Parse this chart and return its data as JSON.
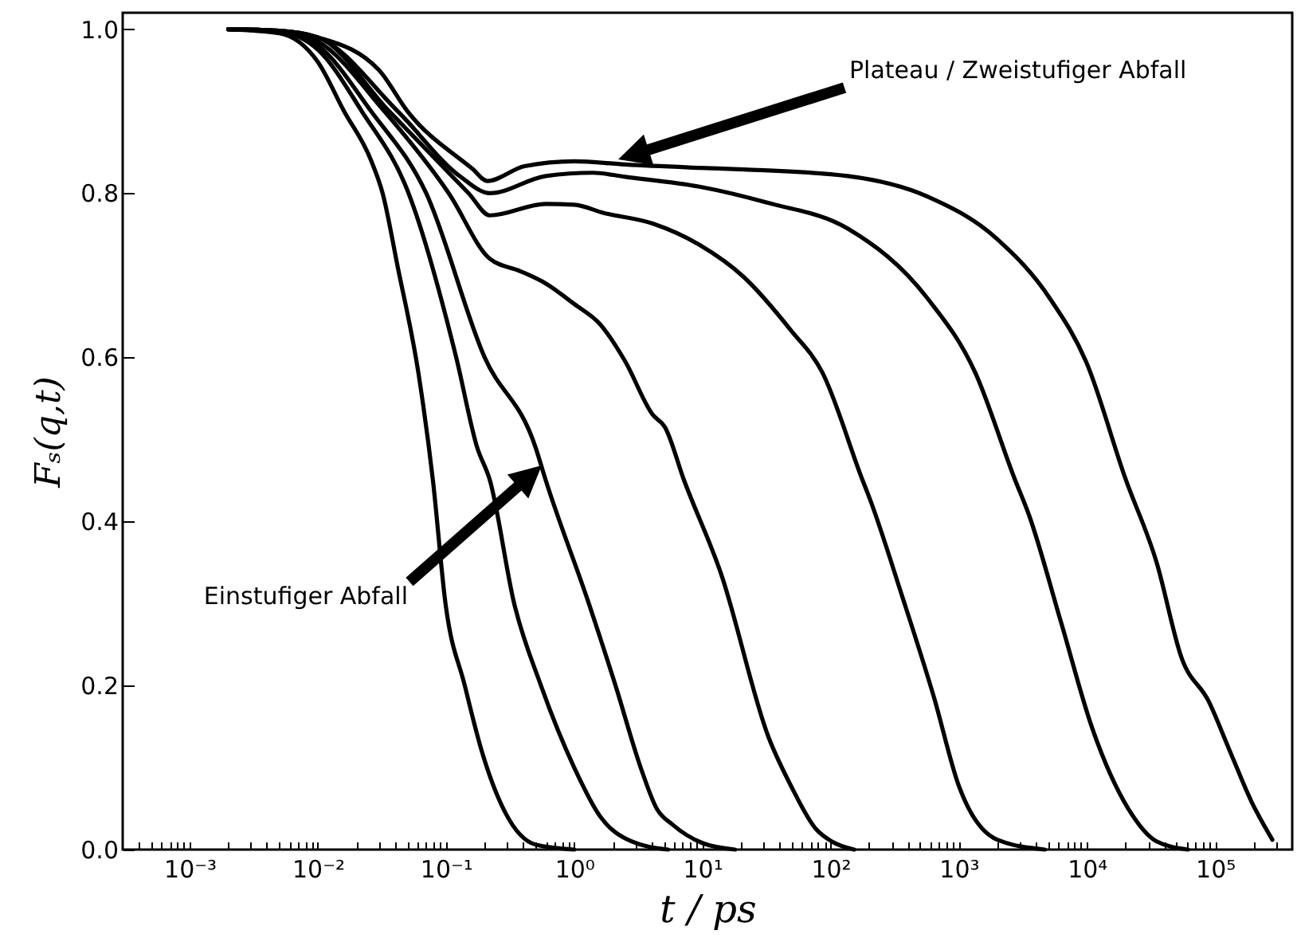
{
  "chart_data": {
    "type": "line",
    "xlabel": "t / ps",
    "ylabel": "Fₛ(q,t)",
    "log": "x",
    "grid": false,
    "xlim": [
      0.0003,
      400000
    ],
    "ylim": [
      0,
      1.02
    ],
    "xticks": [
      {
        "value": 0.0004,
        "label": null
      },
      {
        "value": 0.0005,
        "label": null
      },
      {
        "value": 0.0006,
        "label": null
      },
      {
        "value": 0.0007,
        "label": null
      },
      {
        "value": 0.0008,
        "label": null
      },
      {
        "value": 0.0009,
        "label": null
      },
      {
        "value": 0.001,
        "label": "10⁻³"
      },
      {
        "value": 0.002,
        "label": null
      },
      {
        "value": 0.003,
        "label": null
      },
      {
        "value": 0.004,
        "label": null
      },
      {
        "value": 0.005,
        "label": null
      },
      {
        "value": 0.006,
        "label": null
      },
      {
        "value": 0.007,
        "label": null
      },
      {
        "value": 0.008,
        "label": null
      },
      {
        "value": 0.009,
        "label": null
      },
      {
        "value": 0.01,
        "label": "10⁻²"
      },
      {
        "value": 0.02,
        "label": null
      },
      {
        "value": 0.03,
        "label": null
      },
      {
        "value": 0.04,
        "label": null
      },
      {
        "value": 0.05,
        "label": null
      },
      {
        "value": 0.06,
        "label": null
      },
      {
        "value": 0.07,
        "label": null
      },
      {
        "value": 0.08,
        "label": null
      },
      {
        "value": 0.09,
        "label": null
      },
      {
        "value": 0.1,
        "label": "10⁻¹"
      },
      {
        "value": 0.2,
        "label": null
      },
      {
        "value": 0.3,
        "label": null
      },
      {
        "value": 0.4,
        "label": null
      },
      {
        "value": 0.5,
        "label": null
      },
      {
        "value": 0.6,
        "label": null
      },
      {
        "value": 0.7,
        "label": null
      },
      {
        "value": 0.8,
        "label": null
      },
      {
        "value": 0.9,
        "label": null
      },
      {
        "value": 1,
        "label": "10⁰"
      },
      {
        "value": 2,
        "label": null
      },
      {
        "value": 3,
        "label": null
      },
      {
        "value": 4,
        "label": null
      },
      {
        "value": 5,
        "label": null
      },
      {
        "value": 6,
        "label": null
      },
      {
        "value": 7,
        "label": null
      },
      {
        "value": 8,
        "label": null
      },
      {
        "value": 9,
        "label": null
      },
      {
        "value": 10,
        "label": "10¹"
      },
      {
        "value": 20,
        "label": null
      },
      {
        "value": 30,
        "label": null
      },
      {
        "value": 40,
        "label": null
      },
      {
        "value": 50,
        "label": null
      },
      {
        "value": 60,
        "label": null
      },
      {
        "value": 70,
        "label": null
      },
      {
        "value": 80,
        "label": null
      },
      {
        "value": 90,
        "label": null
      },
      {
        "value": 100,
        "label": "10²"
      },
      {
        "value": 200,
        "label": null
      },
      {
        "value": 300,
        "label": null
      },
      {
        "value": 400,
        "label": null
      },
      {
        "value": 500,
        "label": null
      },
      {
        "value": 600,
        "label": null
      },
      {
        "value": 700,
        "label": null
      },
      {
        "value": 800,
        "label": null
      },
      {
        "value": 900,
        "label": null
      },
      {
        "value": 1000,
        "label": "10³"
      },
      {
        "value": 2000,
        "label": null
      },
      {
        "value": 3000,
        "label": null
      },
      {
        "value": 4000,
        "label": null
      },
      {
        "value": 5000,
        "label": null
      },
      {
        "value": 6000,
        "label": null
      },
      {
        "value": 7000,
        "label": null
      },
      {
        "value": 8000,
        "label": null
      },
      {
        "value": 9000,
        "label": null
      },
      {
        "value": 10000,
        "label": "10⁴"
      },
      {
        "value": 20000,
        "label": null
      },
      {
        "value": 30000,
        "label": null
      },
      {
        "value": 40000,
        "label": null
      },
      {
        "value": 50000,
        "label": null
      },
      {
        "value": 60000,
        "label": null
      },
      {
        "value": 70000,
        "label": null
      },
      {
        "value": 80000,
        "label": null
      },
      {
        "value": 90000,
        "label": null
      },
      {
        "value": 100000,
        "label": "10⁵"
      },
      {
        "value": 200000,
        "label": null
      },
      {
        "value": 300000,
        "label": null
      }
    ],
    "yticks": [
      {
        "value": 0,
        "label": "0.0"
      },
      0.2,
      0.4,
      0.6,
      0.8,
      {
        "value": 1,
        "label": "1.0"
      }
    ],
    "series": [
      {
        "color": "#000000",
        "x": [
          0.002,
          0.005,
          0.01,
          0.016,
          0.026,
          0.032,
          0.042,
          0.061,
          0.079,
          0.099,
          0.14,
          0.19,
          0.29,
          0.5,
          1.0
        ],
        "values": [
          1.0,
          0.995,
          0.96,
          0.9,
          0.84,
          0.8,
          0.71,
          0.58,
          0.45,
          0.3,
          0.2,
          0.12,
          0.045,
          0.006,
          0
        ]
      },
      {
        "color": "#000000",
        "x": [
          0.002,
          0.005,
          0.01,
          0.022,
          0.051,
          0.12,
          0.175,
          0.22,
          0.34,
          0.55,
          1.0,
          1.6,
          2.8,
          5.4
        ],
        "values": [
          1.0,
          0.997,
          0.975,
          0.9,
          0.8,
          0.6,
          0.49,
          0.45,
          0.3,
          0.2,
          0.1,
          0.04,
          0.01,
          0
        ]
      },
      {
        "color": "#000000",
        "x": [
          0.002,
          0.005,
          0.01,
          0.026,
          0.07,
          0.2,
          0.5,
          0.6,
          1.3,
          2.1,
          3.3,
          4.4,
          5.9,
          10,
          18
        ],
        "values": [
          1.0,
          0.997,
          0.98,
          0.9,
          0.8,
          0.6,
          0.49,
          0.45,
          0.3,
          0.2,
          0.1,
          0.05,
          0.03,
          0.008,
          0
        ]
      },
      {
        "color": "#000000",
        "x": [
          0.002,
          0.005,
          0.01,
          0.033,
          0.105,
          0.22,
          0.38,
          0.6,
          1.0,
          1.6,
          2.5,
          4.1,
          5.1,
          7.2,
          14,
          33,
          49,
          77,
          102,
          153
        ],
        "values": [
          1.0,
          0.998,
          0.985,
          0.9,
          0.8,
          0.72,
          0.705,
          0.69,
          0.665,
          0.64,
          0.595,
          0.53,
          0.515,
          0.45,
          0.336,
          0.136,
          0.078,
          0.025,
          0.01,
          0
        ]
      },
      {
        "color": "#000000",
        "x": [
          0.002,
          0.005,
          0.01,
          0.036,
          0.15,
          0.22,
          0.6,
          1.0,
          1.7,
          4.1,
          9.5,
          21,
          49,
          86,
          176,
          203,
          360,
          640,
          1000,
          2000,
          4700
        ],
        "values": [
          1.0,
          0.998,
          0.99,
          0.9,
          0.8,
          0.773,
          0.787,
          0.786,
          0.776,
          0.763,
          0.737,
          0.698,
          0.633,
          0.582,
          0.452,
          0.427,
          0.31,
          0.186,
          0.078,
          0.012,
          0
        ]
      },
      {
        "color": "#000000",
        "x": [
          0.002,
          0.005,
          0.01,
          0.042,
          0.13,
          0.22,
          0.6,
          1.4,
          2.5,
          9.5,
          33,
          136,
          570,
          1340,
          2730,
          3530,
          6260,
          11000,
          21000,
          35000,
          61500
        ],
        "values": [
          1.0,
          0.998,
          0.99,
          0.9,
          0.82,
          0.8,
          0.821,
          0.825,
          0.82,
          0.808,
          0.788,
          0.757,
          0.672,
          0.582,
          0.452,
          0.408,
          0.278,
          0.148,
          0.05,
          0.01,
          0
        ]
      },
      {
        "color": "#000000",
        "x": [
          0.002,
          0.005,
          0.01,
          0.03,
          0.05,
          0.16,
          0.21,
          0.41,
          1.0,
          2.5,
          9.5,
          21,
          136,
          570,
          2000,
          5130,
          9900,
          20000,
          35000,
          55000,
          89000,
          129000,
          193000,
          280000
        ],
        "values": [
          1.0,
          0.998,
          0.99,
          0.95,
          0.9,
          0.83,
          0.815,
          0.833,
          0.839,
          0.835,
          0.831,
          0.829,
          0.821,
          0.796,
          0.744,
          0.672,
          0.594,
          0.452,
          0.35,
          0.233,
          0.181,
          0.122,
          0.058,
          0.012
        ]
      }
    ],
    "annotations": [
      "Plateau / Zweistufiger Abfall",
      "Einstufiger Abfall"
    ]
  }
}
